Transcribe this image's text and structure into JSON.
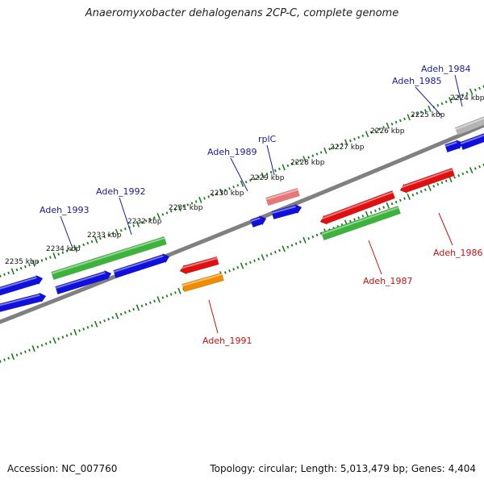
{
  "title": "Anaeromyxobacter dehalogenans 2CP-C, complete genome",
  "footer": {
    "accession": "Accession: NC_007760",
    "summary": "Topology: circular; Length: 5,013,479 bp; Genes: 4,404"
  },
  "kbp_labels": [
    "2224 kbp",
    "2225 kbp",
    "2226 kbp",
    "2227 kbp",
    "2228 kbp",
    "2229 kbp",
    "2230 kbp",
    "2231 kbp",
    "2232 kbp",
    "2233 kbp",
    "2234 kbp",
    "2235 kbp"
  ],
  "gene_labels": [
    {
      "text": "Adeh_1984",
      "strand": "forward"
    },
    {
      "text": "Adeh_1985",
      "strand": "forward"
    },
    {
      "text": "Adeh_1989",
      "strand": "forward"
    },
    {
      "text": "rplC",
      "strand": "forward"
    },
    {
      "text": "Adeh_1992",
      "strand": "forward"
    },
    {
      "text": "Adeh_1993",
      "strand": "forward"
    },
    {
      "text": "Adeh_1986",
      "strand": "reverse"
    },
    {
      "text": "Adeh_1987",
      "strand": "reverse"
    },
    {
      "text": "Adeh_1991",
      "strand": "reverse"
    }
  ],
  "colors": {
    "forward_label": "#1a1aa8",
    "reverse_label": "#cc1111",
    "backbone": "#808080",
    "tick": "#1e7d1e",
    "gene_blue": "#1010dd",
    "gene_green": "#3cb43c",
    "gene_red": "#e01010",
    "gene_orange": "#f08c00",
    "gene_pink": "#e87878",
    "gene_gray": "#b4b4b4"
  }
}
